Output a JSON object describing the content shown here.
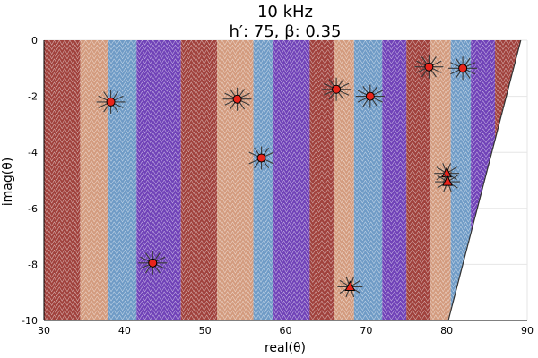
{
  "chart_data": {
    "type": "scatter",
    "title": "10 kHz",
    "subtitle": "h′: 75, β: 0.35",
    "xlabel": "real(θ)",
    "ylabel": "imag(θ)",
    "xlim": [
      30,
      90
    ],
    "ylim": [
      -10,
      0
    ],
    "xticks": [
      30,
      40,
      50,
      60,
      70,
      80,
      90
    ],
    "yticks": [
      0,
      -2,
      -4,
      -6,
      -8,
      -10
    ],
    "grid": true,
    "phase_colors": [
      "#a0413c",
      "#d39b7e",
      "#6f9bc6",
      "#7042b8"
    ],
    "phase_bands": [
      {
        "x0": 30,
        "x1": 34.5,
        "c": 0
      },
      {
        "x0": 34.5,
        "x1": 38,
        "c": 1
      },
      {
        "x0": 38,
        "x1": 41.5,
        "c": 2
      },
      {
        "x0": 41.5,
        "x1": 47,
        "c": 3
      },
      {
        "x0": 47,
        "x1": 51.5,
        "c": 0
      },
      {
        "x0": 51.5,
        "x1": 56,
        "c": 1
      },
      {
        "x0": 56,
        "x1": 58.5,
        "c": 2
      },
      {
        "x0": 58.5,
        "x1": 63,
        "c": 3
      },
      {
        "x0": 63,
        "x1": 66,
        "c": 0
      },
      {
        "x0": 66,
        "x1": 68.5,
        "c": 1
      },
      {
        "x0": 68.5,
        "x1": 72,
        "c": 2
      },
      {
        "x0": 72,
        "x1": 75,
        "c": 3
      },
      {
        "x0": 75,
        "x1": 78,
        "c": 0
      },
      {
        "x0": 78,
        "x1": 80.5,
        "c": 1
      },
      {
        "x0": 80.5,
        "x1": 83,
        "c": 2
      },
      {
        "x0": 83,
        "x1": 86,
        "c": 3
      },
      {
        "x0": 86,
        "x1": 90,
        "c": 0
      }
    ],
    "boundary": [
      [
        89.2,
        0
      ],
      [
        80.2,
        -10
      ]
    ],
    "zeros": [
      {
        "x": 38.3,
        "y": -2.2
      },
      {
        "x": 54.0,
        "y": -2.1
      },
      {
        "x": 57.0,
        "y": -4.2
      },
      {
        "x": 66.3,
        "y": -1.75
      },
      {
        "x": 70.5,
        "y": -2.0
      },
      {
        "x": 77.8,
        "y": -0.95
      },
      {
        "x": 82.0,
        "y": -1.0
      },
      {
        "x": 43.5,
        "y": -7.95
      }
    ],
    "poles": [
      {
        "x": 80.0,
        "y": -4.75
      },
      {
        "x": 80.1,
        "y": -5.05
      },
      {
        "x": 68.0,
        "y": -8.8
      }
    ]
  }
}
